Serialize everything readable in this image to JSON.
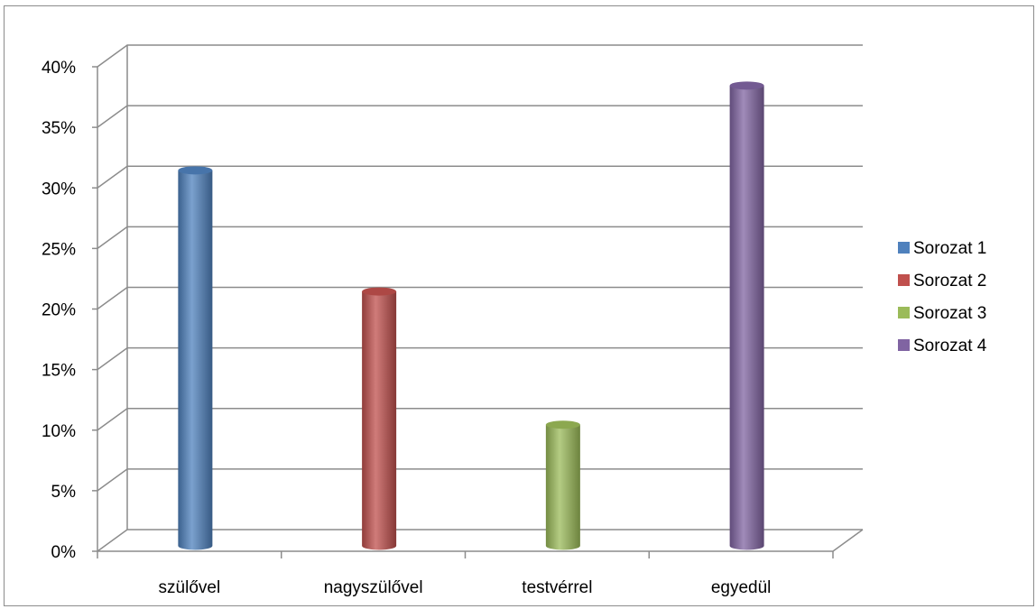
{
  "chart_data": {
    "type": "bar",
    "title": "",
    "xlabel": "",
    "ylabel": "",
    "categories": [
      "szülővel",
      "nagyszülővel",
      "testvérrel",
      "egyedül"
    ],
    "series": [
      {
        "name": "Sorozat 1",
        "color": "#4f81bd",
        "values": [
          0.31,
          null,
          null,
          null
        ]
      },
      {
        "name": "Sorozat 2",
        "color": "#c0504d",
        "values": [
          null,
          0.21,
          null,
          null
        ]
      },
      {
        "name": "Sorozat 3",
        "color": "#9bbb59",
        "values": [
          null,
          null,
          0.1,
          null
        ]
      },
      {
        "name": "Sorozat 4",
        "color": "#8064a2",
        "values": [
          null,
          null,
          null,
          0.38
        ]
      }
    ],
    "ylim": [
      0,
      0.4
    ],
    "yticks": [
      "0%",
      "5%",
      "10%",
      "15%",
      "20%",
      "25%",
      "30%",
      "35%",
      "40%"
    ],
    "grid": true,
    "legend_position": "right",
    "style": "3d-cylinder"
  }
}
